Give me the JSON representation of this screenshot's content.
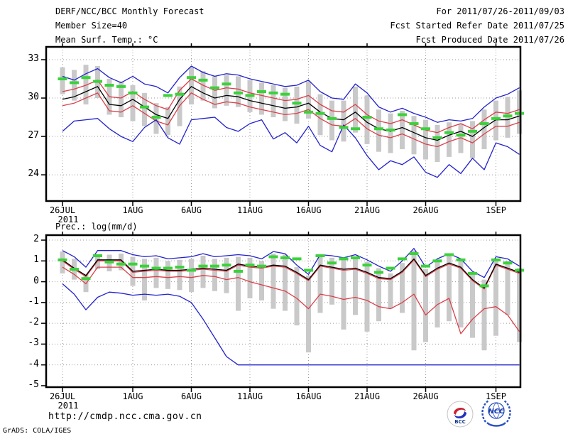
{
  "header": {
    "title": "DERF/NCC/BCC Monthly Forecast",
    "member_size": "Member Size=40",
    "for_period": "For 2011/07/26-2011/09/03",
    "fcst_started": "Fcst Started Refer Date 2011/07/25",
    "fcst_produced": "Fcst Produced Date 2011/07/26"
  },
  "footer": {
    "url": "http://cmdp.ncc.cma.gov.cn",
    "credit": "GrADS: COLA/IGES",
    "logos": [
      "BCC",
      "NCC"
    ]
  },
  "colors": {
    "max_min": "#2222cc",
    "quartile": "#dc3e48",
    "mean": "#000000",
    "reference": "#3ad23a",
    "spread_bar": "#c9c9c9",
    "grid": "#9a9a9a",
    "frame": "#000000"
  },
  "chart_data": [
    {
      "type": "line",
      "title": "Mean Surf. Temp.: °C",
      "x_axis": "daily, 26JUL2011 - 3SEP2011",
      "x_tick_labels": [
        "26JUL",
        "1AUG",
        "6AUG",
        "11AUG",
        "16AUG",
        "21AUG",
        "26AUG",
        "1SEP"
      ],
      "x_tick_days": [
        0,
        6,
        11,
        16,
        21,
        26,
        31,
        37
      ],
      "x_start_sublabel": "2011",
      "n_days": 40,
      "y_ticks": [
        33,
        30,
        27,
        24
      ],
      "ylim": [
        21.95,
        34.0
      ],
      "grid": true,
      "legend": "none",
      "series": [
        {
          "name": "ensemble max (blue)",
          "color_key": "max_min",
          "style": "line",
          "values": [
            31.7,
            31.4,
            31.9,
            32.3,
            31.6,
            31.2,
            31.7,
            31.1,
            30.9,
            30.4,
            31.6,
            32.5,
            32.0,
            31.7,
            31.9,
            31.8,
            31.5,
            31.3,
            31.1,
            30.9,
            31.0,
            31.4,
            30.5,
            30.0,
            29.9,
            31.1,
            30.4,
            29.3,
            28.9,
            29.2,
            28.8,
            28.5,
            28.1,
            28.3,
            28.2,
            28.4,
            29.3,
            30.0,
            30.3,
            30.8
          ]
        },
        {
          "name": "ensemble upper quartile (red)",
          "color_key": "quartile",
          "style": "line",
          "values": [
            30.5,
            30.7,
            31.0,
            31.4,
            30.1,
            30.0,
            30.5,
            29.9,
            29.4,
            29.1,
            30.6,
            31.5,
            31.0,
            30.6,
            30.8,
            30.7,
            30.4,
            30.2,
            30.0,
            29.8,
            29.9,
            30.2,
            29.5,
            29.0,
            28.9,
            29.5,
            28.7,
            28.2,
            28.0,
            28.3,
            27.9,
            27.5,
            27.3,
            27.7,
            28.0,
            27.6,
            28.3,
            28.9,
            28.8,
            29.1
          ]
        },
        {
          "name": "ensemble mean (black)",
          "color_key": "mean",
          "style": "line",
          "values": [
            29.9,
            30.1,
            30.5,
            30.9,
            29.5,
            29.4,
            29.9,
            29.3,
            28.7,
            28.4,
            29.9,
            30.9,
            30.4,
            30.0,
            30.2,
            30.1,
            29.8,
            29.6,
            29.4,
            29.2,
            29.3,
            29.6,
            28.9,
            28.4,
            28.3,
            28.9,
            28.1,
            27.6,
            27.4,
            27.7,
            27.3,
            26.9,
            26.7,
            27.1,
            27.4,
            27.0,
            27.7,
            28.3,
            28.3,
            28.6
          ]
        },
        {
          "name": "ensemble lower quartile (red)",
          "color_key": "quartile",
          "style": "line",
          "values": [
            29.4,
            29.6,
            30.0,
            30.4,
            29.0,
            28.9,
            29.4,
            28.8,
            28.2,
            27.9,
            29.4,
            30.4,
            29.9,
            29.5,
            29.7,
            29.6,
            29.3,
            29.1,
            28.9,
            28.7,
            28.8,
            29.1,
            28.4,
            27.9,
            27.8,
            28.4,
            27.6,
            27.1,
            26.9,
            27.2,
            26.8,
            26.4,
            26.2,
            26.6,
            26.9,
            26.5,
            27.2,
            27.8,
            27.8,
            28.1
          ]
        },
        {
          "name": "ensemble min (blue)",
          "color_key": "max_min",
          "style": "line",
          "values": [
            27.4,
            28.2,
            28.3,
            28.4,
            27.6,
            27.0,
            26.6,
            27.7,
            28.3,
            26.9,
            26.4,
            28.3,
            28.4,
            28.5,
            27.7,
            27.4,
            28.0,
            28.3,
            26.8,
            27.3,
            26.5,
            27.8,
            26.3,
            25.8,
            27.9,
            26.9,
            25.5,
            24.4,
            25.1,
            24.8,
            25.4,
            24.2,
            23.8,
            24.8,
            24.1,
            25.3,
            24.4,
            26.5,
            26.2,
            25.6
          ]
        },
        {
          "name": "reference (green dashed)",
          "color_key": "reference",
          "style": "dash-marks",
          "values": [
            31.5,
            31.2,
            31.6,
            31.3,
            31.0,
            30.9,
            30.4,
            29.3,
            28.5,
            30.2,
            30.3,
            31.6,
            31.4,
            30.8,
            31.1,
            30.4,
            30.2,
            30.5,
            30.4,
            30.3,
            29.6,
            28.9,
            28.8,
            28.4,
            27.7,
            27.6,
            28.5,
            27.6,
            27.5,
            28.7,
            28.0,
            27.6,
            26.9,
            27.3,
            27.1,
            27.4,
            28.0,
            28.4,
            28.6,
            28.8
          ]
        }
      ],
      "spread_bars": {
        "name": "ensemble spread bar (gray)",
        "top": [
          32.4,
          32.2,
          32.6,
          32.5,
          31.5,
          31.3,
          31.0,
          30.4,
          29.6,
          29.3,
          30.9,
          32.4,
          32.1,
          31.7,
          31.8,
          31.7,
          31.4,
          31.2,
          31.0,
          30.8,
          30.9,
          31.3,
          30.3,
          29.8,
          29.8,
          30.9,
          30.2,
          29.1,
          28.8,
          29.0,
          28.6,
          28.3,
          27.9,
          28.1,
          28.0,
          28.2,
          29.1,
          29.8,
          30.1,
          30.6
        ],
        "bottom": [
          30.3,
          29.8,
          29.5,
          30.0,
          28.7,
          28.5,
          28.2,
          27.8,
          27.2,
          27.1,
          27.8,
          29.5,
          29.8,
          29.2,
          29.4,
          29.3,
          28.9,
          28.7,
          28.5,
          28.2,
          28.0,
          28.4,
          27.1,
          26.7,
          26.6,
          27.3,
          26.4,
          25.8,
          25.7,
          26.0,
          25.6,
          25.2,
          25.0,
          25.4,
          25.7,
          25.3,
          26.0,
          26.7,
          26.9,
          27.2
        ]
      }
    },
    {
      "type": "line",
      "title": "Prec.: log(mm/d)",
      "x_axis": "daily, 26JUL2011 - 3SEP2011",
      "x_tick_labels": [
        "26JUL",
        "1AUG",
        "6AUG",
        "11AUG",
        "16AUG",
        "21AUG",
        "26AUG",
        "1SEP"
      ],
      "x_tick_days": [
        0,
        6,
        11,
        16,
        21,
        26,
        31,
        37
      ],
      "x_start_sublabel": "2011",
      "n_days": 40,
      "y_ticks": [
        2,
        1,
        0,
        -1,
        -2,
        -3,
        -4,
        -5
      ],
      "ylim": [
        -5.07,
        2.24
      ],
      "grid": true,
      "legend": "none",
      "series": [
        {
          "name": "ensemble max (blue)",
          "color_key": "max_min",
          "style": "line",
          "values": [
            1.5,
            1.2,
            0.7,
            1.5,
            1.5,
            1.5,
            1.3,
            1.2,
            1.25,
            1.1,
            1.15,
            1.2,
            1.35,
            1.2,
            1.25,
            1.3,
            1.25,
            1.1,
            1.45,
            1.35,
            0.8,
            0.35,
            1.3,
            1.25,
            1.15,
            1.3,
            1.05,
            0.75,
            0.5,
            1.0,
            1.6,
            0.7,
            1.1,
            1.35,
            1.1,
            0.5,
            0.2,
            1.2,
            1.1,
            0.75
          ]
        },
        {
          "name": "ensemble upper quartile (red)",
          "color_key": "quartile",
          "style": "line",
          "values": [
            1.0,
            0.6,
            0.25,
            1.0,
            1.0,
            1.0,
            0.45,
            0.5,
            0.55,
            0.5,
            0.5,
            0.55,
            0.6,
            0.55,
            0.5,
            0.8,
            0.7,
            0.65,
            0.75,
            0.7,
            0.4,
            0.05,
            0.75,
            0.65,
            0.55,
            0.6,
            0.4,
            0.15,
            0.1,
            0.45,
            1.05,
            0.25,
            0.6,
            0.85,
            0.65,
            0.05,
            -0.35,
            0.8,
            0.6,
            0.4
          ]
        },
        {
          "name": "ensemble mean (black)",
          "color_key": "mean",
          "style": "line",
          "values": [
            1.05,
            0.65,
            0.3,
            1.05,
            1.05,
            1.05,
            0.5,
            0.55,
            0.6,
            0.55,
            0.55,
            0.6,
            0.65,
            0.6,
            0.55,
            0.85,
            0.75,
            0.7,
            0.8,
            0.75,
            0.45,
            0.1,
            0.8,
            0.7,
            0.6,
            0.65,
            0.45,
            0.2,
            0.15,
            0.5,
            1.1,
            0.3,
            0.65,
            0.9,
            0.7,
            0.1,
            -0.3,
            0.85,
            0.65,
            0.45
          ]
        },
        {
          "name": "ensemble lower quartile (red)",
          "color_key": "quartile",
          "style": "line",
          "values": [
            0.7,
            0.35,
            -0.1,
            0.7,
            0.7,
            0.7,
            0.2,
            0.2,
            0.25,
            0.2,
            0.25,
            0.2,
            0.3,
            0.25,
            0.1,
            0.2,
            0.0,
            -0.15,
            -0.3,
            -0.45,
            -0.8,
            -1.3,
            -0.6,
            -0.7,
            -0.85,
            -0.75,
            -0.9,
            -1.2,
            -1.3,
            -1.0,
            -0.6,
            -1.6,
            -1.1,
            -0.8,
            -2.5,
            -1.8,
            -1.3,
            -1.2,
            -1.6,
            -2.4
          ]
        },
        {
          "name": "ensemble min (blue)",
          "color_key": "max_min",
          "style": "line",
          "values": [
            -0.1,
            -0.6,
            -1.35,
            -0.75,
            -0.5,
            -0.55,
            -0.65,
            -0.6,
            -0.65,
            -0.6,
            -0.7,
            -1.0,
            -1.8,
            -2.7,
            -3.6,
            -4.0,
            -4.0,
            -4.0,
            -4.0,
            -4.0,
            -4.0,
            -4.0,
            -4.0,
            -4.0,
            -4.0,
            -4.0,
            -4.0,
            -4.0,
            -4.0,
            -4.0,
            -4.0,
            -4.0,
            -4.0,
            -4.0,
            -4.0,
            -4.0,
            -4.0,
            -4.0,
            -4.0,
            -4.0
          ]
        },
        {
          "name": "reference (green dashed)",
          "color_key": "reference",
          "style": "dash-marks",
          "values": [
            1.05,
            0.6,
            0.15,
            1.25,
            0.95,
            0.85,
            0.85,
            0.75,
            0.65,
            0.65,
            0.7,
            0.55,
            0.75,
            0.75,
            0.8,
            0.5,
            0.8,
            0.75,
            1.2,
            1.15,
            1.1,
            0.55,
            1.25,
            0.9,
            1.1,
            1.15,
            0.8,
            0.45,
            0.65,
            1.1,
            1.35,
            0.75,
            1.0,
            1.3,
            1.05,
            0.4,
            -0.2,
            1.05,
            0.9,
            0.55
          ]
        }
      ],
      "spread_bars": {
        "name": "ensemble spread bar (gray)",
        "top": [
          1.45,
          1.1,
          0.35,
          1.3,
          1.3,
          1.35,
          1.2,
          1.1,
          1.15,
          1.0,
          1.05,
          1.1,
          1.25,
          1.1,
          1.15,
          1.2,
          1.15,
          1.0,
          1.35,
          1.3,
          0.7,
          0.3,
          1.2,
          1.15,
          1.05,
          1.2,
          0.95,
          0.65,
          0.4,
          0.9,
          1.5,
          0.6,
          1.0,
          1.25,
          1.0,
          0.4,
          0.1,
          1.1,
          1.0,
          0.65
        ],
        "bottom": [
          0.4,
          0.1,
          -0.5,
          0.6,
          0.5,
          0.55,
          -0.2,
          -0.9,
          -0.3,
          -0.35,
          -0.4,
          -0.5,
          -0.3,
          -0.45,
          -0.55,
          -1.4,
          -0.8,
          -0.9,
          -1.3,
          -1.4,
          -2.1,
          -3.4,
          -1.5,
          -1.1,
          -2.3,
          -1.6,
          -2.4,
          -1.9,
          -1.3,
          -1.5,
          -3.3,
          -2.9,
          -2.2,
          -1.9,
          -2.2,
          -2.7,
          -3.3,
          -2.6,
          -1.6,
          -2.9
        ]
      }
    }
  ]
}
